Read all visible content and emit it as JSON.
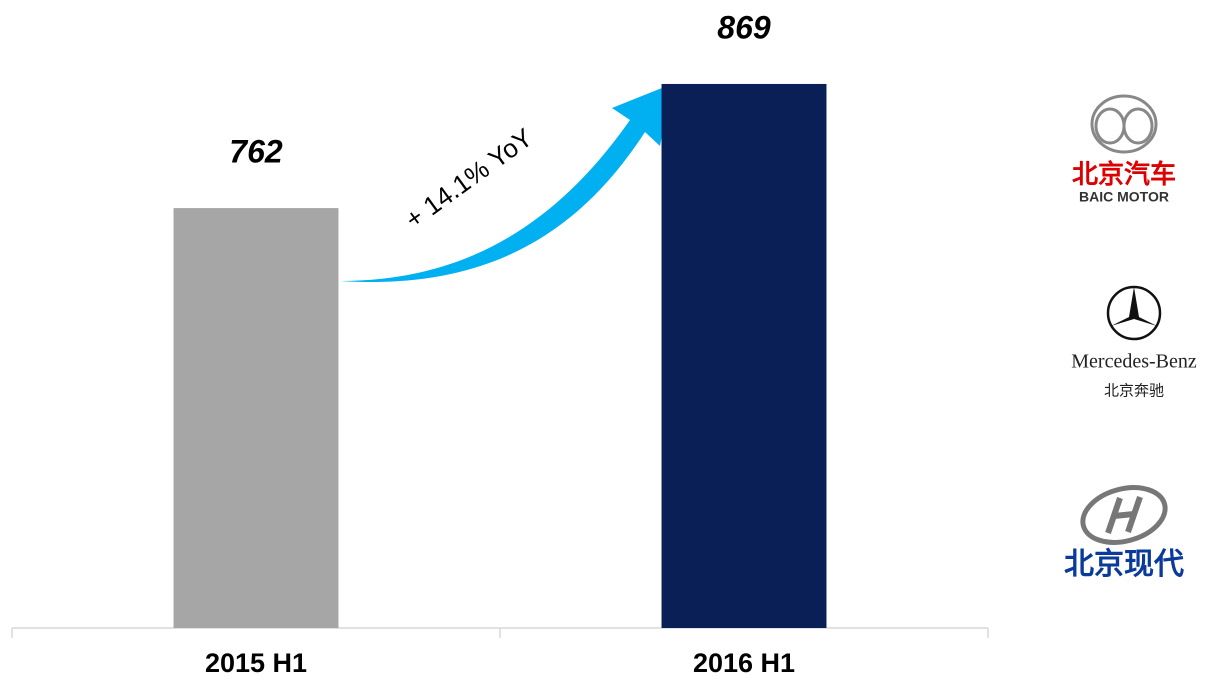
{
  "chart_data": {
    "type": "bar",
    "categories": [
      "2015 H1",
      "2016 H1"
    ],
    "values": [
      762,
      869
    ],
    "colors": [
      "#a6a6a6",
      "#0a1f56"
    ],
    "ylim": [
      400,
      900
    ],
    "annotation": "+ 14.1% YoY",
    "logos": [
      {
        "name": "北京汽车",
        "subtitle": "BAIC MOTOR"
      },
      {
        "name": "Mercedes-Benz",
        "subtitle": "北京奔驰"
      },
      {
        "name": "北京现代"
      }
    ]
  }
}
